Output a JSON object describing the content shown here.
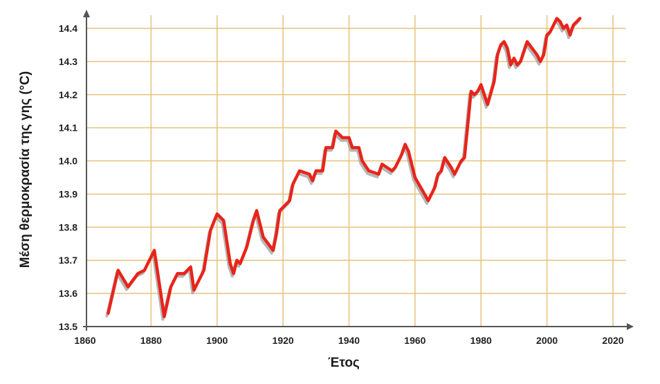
{
  "chart_data": {
    "type": "line",
    "title": "",
    "xlabel": "Έτος",
    "ylabel": "Μέση θερμοκρασία της γης (°C)",
    "xlim": [
      1860,
      2020
    ],
    "ylim": [
      13.5,
      14.4
    ],
    "xticks": [
      "1860",
      "1880",
      "1900",
      "1920",
      "1940",
      "1960",
      "1980",
      "2000",
      "2020"
    ],
    "yticks": [
      "13.5",
      "13.6",
      "13.7",
      "13.8",
      "13.9",
      "14.0",
      "14.1",
      "14.2",
      "14.3",
      "14.4"
    ],
    "grid": true,
    "legend": "none",
    "colors": {
      "line": "#e8241a",
      "shadow": "#9e9e9e",
      "grid": "#e6c27a",
      "axis": "#555555"
    },
    "series": [
      {
        "x": [
          1867,
          1870,
          1873,
          1876,
          1878,
          1881,
          1884,
          1886,
          1888,
          1890,
          1892,
          1893,
          1896,
          1897,
          1898,
          1900,
          1902,
          1904,
          1905,
          1906,
          1907,
          1909,
          1911,
          1912,
          1914,
          1917,
          1918,
          1919,
          1921,
          1922,
          1923,
          1925,
          1928,
          1929,
          1930,
          1932,
          1933,
          1935,
          1936,
          1937,
          1938,
          1940,
          1941,
          1943,
          1944,
          1946,
          1949,
          1950,
          1953,
          1954,
          1956,
          1957,
          1958,
          1960,
          1964,
          1966,
          1967,
          1968,
          1969,
          1971,
          1972,
          1974,
          1975,
          1976,
          1977,
          1978,
          1979,
          1980,
          1982,
          1984,
          1985,
          1986,
          1987,
          1988,
          1989,
          1990,
          1991,
          1992,
          1994,
          1997,
          1998,
          1999,
          2000,
          2001,
          2003,
          2004,
          2005,
          2006,
          2007,
          2008,
          2010
        ],
        "y": [
          13.54,
          13.67,
          13.62,
          13.66,
          13.67,
          13.73,
          13.53,
          13.62,
          13.66,
          13.66,
          13.68,
          13.61,
          13.67,
          13.73,
          13.79,
          13.84,
          13.82,
          13.69,
          13.66,
          13.7,
          13.69,
          13.74,
          13.82,
          13.85,
          13.77,
          13.73,
          13.78,
          13.85,
          13.87,
          13.88,
          13.93,
          13.97,
          13.96,
          13.94,
          13.97,
          13.97,
          14.04,
          14.04,
          14.09,
          14.08,
          14.07,
          14.07,
          14.04,
          14.04,
          14.0,
          13.97,
          13.96,
          13.99,
          13.97,
          13.98,
          14.02,
          14.05,
          14.03,
          13.95,
          13.88,
          13.92,
          13.96,
          13.97,
          14.01,
          13.98,
          13.96,
          14.0,
          14.01,
          14.11,
          14.21,
          14.2,
          14.21,
          14.23,
          14.17,
          14.24,
          14.32,
          14.35,
          14.36,
          14.34,
          14.29,
          14.31,
          14.29,
          14.3,
          14.36,
          14.32,
          14.3,
          14.32,
          14.38,
          14.39,
          14.43,
          14.42,
          14.4,
          14.41,
          14.38,
          14.41,
          14.43
        ]
      }
    ]
  }
}
